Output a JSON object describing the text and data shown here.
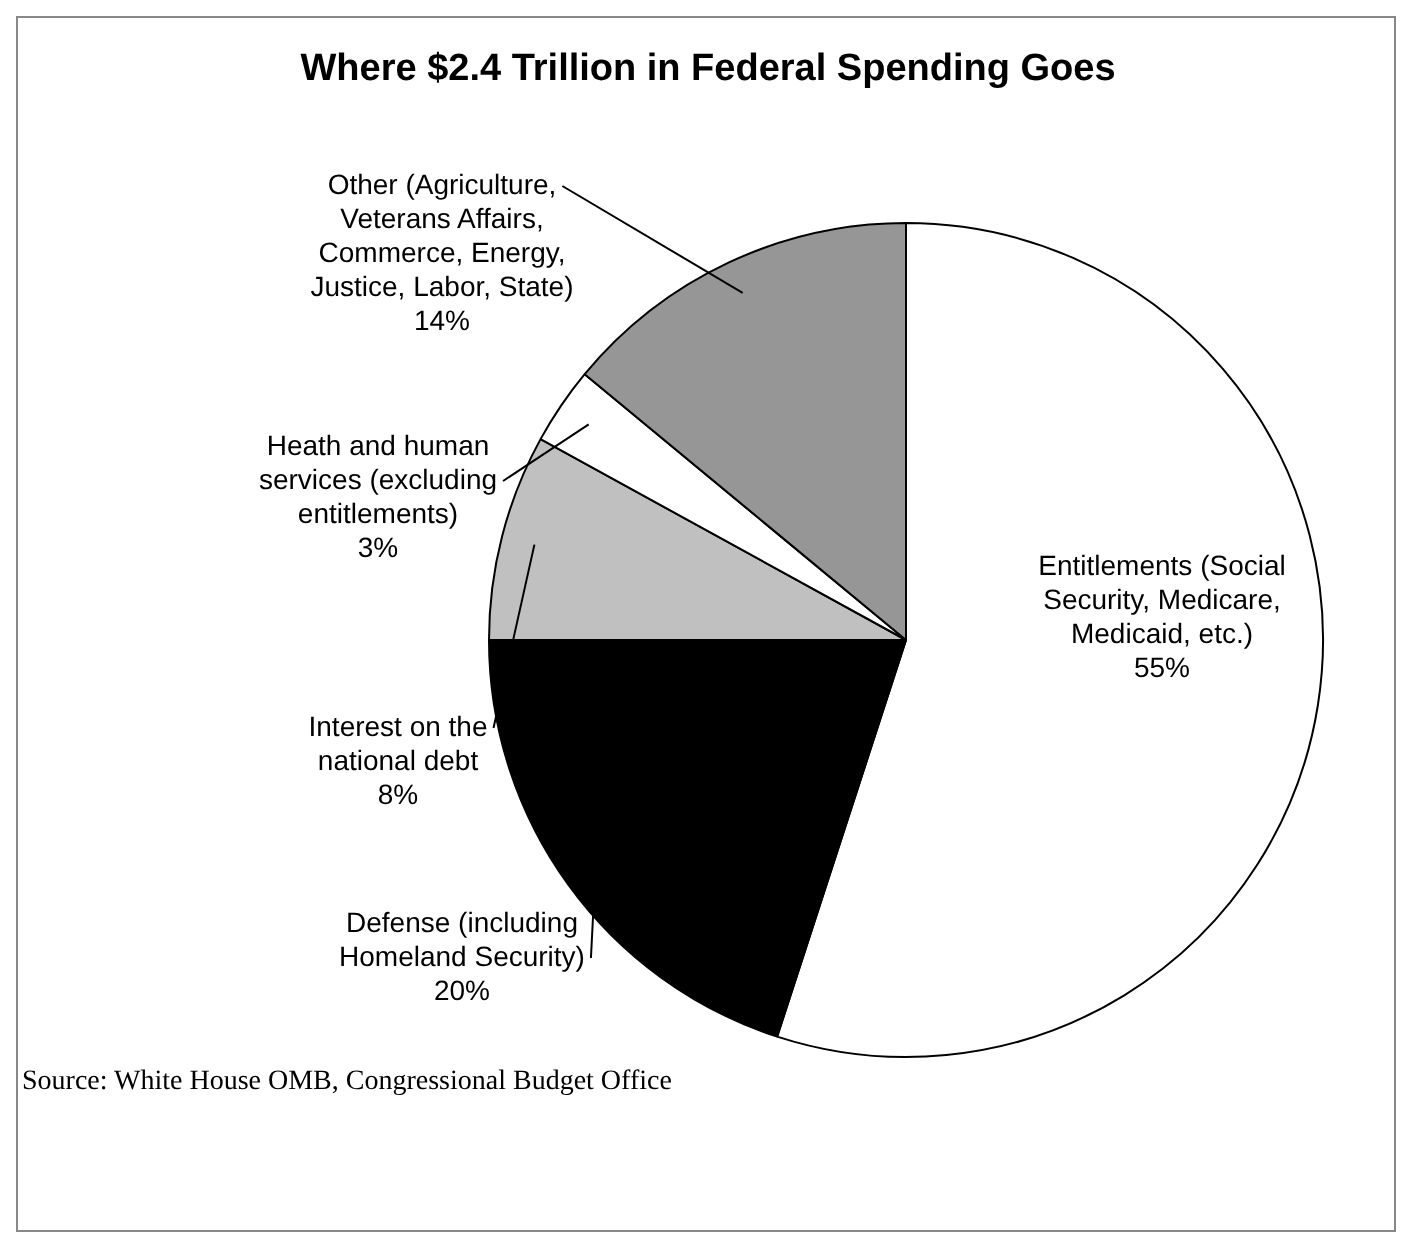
{
  "chart_data": {
    "type": "pie",
    "title": "Where $2.4 Trillion in Federal Spending Goes",
    "categories": [
      "Entitlements (Social Security, Medicare, Medicaid, etc.)",
      "Defense (including Homeland Security)",
      "Interest on the national debt",
      "Heath and human services (excluding entitlements)",
      "Other (Agriculture, Veterans Affairs, Commerce, Energy, Justice, Labor, State)"
    ],
    "values": [
      55,
      20,
      8,
      3,
      14
    ],
    "value_labels": [
      "55%",
      "20%",
      "8%",
      "3%",
      "14%"
    ],
    "colors": [
      "#ffffff",
      "#000000",
      "#c0c0c0",
      "#ffffff",
      "#969696"
    ],
    "legend": false,
    "annotations": [
      "Source: White House OMB, Congressional Budget Office"
    ]
  }
}
